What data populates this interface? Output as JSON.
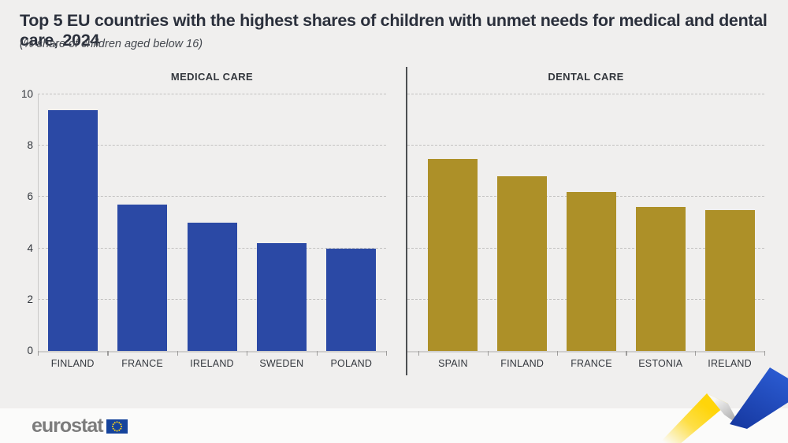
{
  "title": "Top 5 EU countries with the highest shares of children with unmet needs for medical and dental care, 2024",
  "subtitle": "(% share of children aged below 16)",
  "chart_data": {
    "type": "bar",
    "layout": "two side-by-side panels sharing one y-scale",
    "ylim": [
      0,
      10
    ],
    "yticks": [
      0,
      2,
      4,
      6,
      8,
      10
    ],
    "grid": "horizontal dashed gridlines",
    "panels": [
      {
        "title": "MEDICAL CARE",
        "bar_color": "#2b49a5",
        "categories": [
          "FINLAND",
          "FRANCE",
          "IRELAND",
          "SWEDEN",
          "POLAND"
        ],
        "values": [
          9.4,
          5.7,
          5.0,
          4.2,
          4.0
        ]
      },
      {
        "title": "DENTAL CARE",
        "bar_color": "#ad9028",
        "categories": [
          "SPAIN",
          "FINLAND",
          "FRANCE",
          "ESTONIA",
          "IRELAND"
        ],
        "values": [
          7.5,
          6.8,
          6.2,
          5.6,
          5.5
        ]
      }
    ]
  },
  "footer": {
    "logo_text": "eurostat",
    "eu_flag_icon": "eu-flag-icon",
    "flag_blue": "#15439c",
    "star_yellow": "#ffd617"
  },
  "decoration": {
    "ribbon_icon": "eurostat-ribbon-icon",
    "ribbon_yellow": "#ffd50a",
    "ribbon_blue": "#1d4ec2",
    "ribbon_silver": "#c7c7c7"
  },
  "colors": {
    "background": "#f0efee",
    "footer_background": "#fbfbfa",
    "text_dark": "#2b303c",
    "grid": "#c2c1c0",
    "divider": "#4d4f52"
  }
}
